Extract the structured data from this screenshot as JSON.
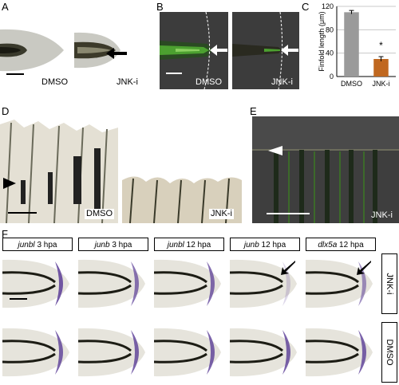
{
  "panels": {
    "A": {
      "letter": "A",
      "left_label": "DMSO",
      "right_label": "JNK-i"
    },
    "B": {
      "letter": "B",
      "left_label": "DMSO",
      "right_label": "JNK-i"
    },
    "C": {
      "letter": "C"
    },
    "D": {
      "letter": "D",
      "left_label": "DMSO",
      "right_label": "JNK-i"
    },
    "E": {
      "letter": "E",
      "label": "JNK-i"
    },
    "F": {
      "letter": "F",
      "columns": [
        {
          "gene": "junbl",
          "time": "3 hpa"
        },
        {
          "gene": "junb",
          "time": "3 hpa"
        },
        {
          "gene": "junbl",
          "time": "12 hpa"
        },
        {
          "gene": "junb",
          "time": "12 hpa"
        },
        {
          "gene": "dlx5a",
          "time": "12 hpa"
        }
      ],
      "rows": [
        "JNK-i",
        "DMSO"
      ]
    }
  },
  "chart_data": {
    "type": "bar",
    "categories": [
      "DMSO",
      "JNK-i"
    ],
    "values": [
      110,
      30
    ],
    "errors": [
      3,
      4
    ],
    "ylabel": "Finfold length (μm)",
    "ylim": [
      0,
      120
    ],
    "yticks": [
      "0",
      "40",
      "80",
      "120"
    ],
    "colors": [
      "#9a9a9a",
      "#c06820"
    ],
    "annotation": "*",
    "grid": true
  }
}
